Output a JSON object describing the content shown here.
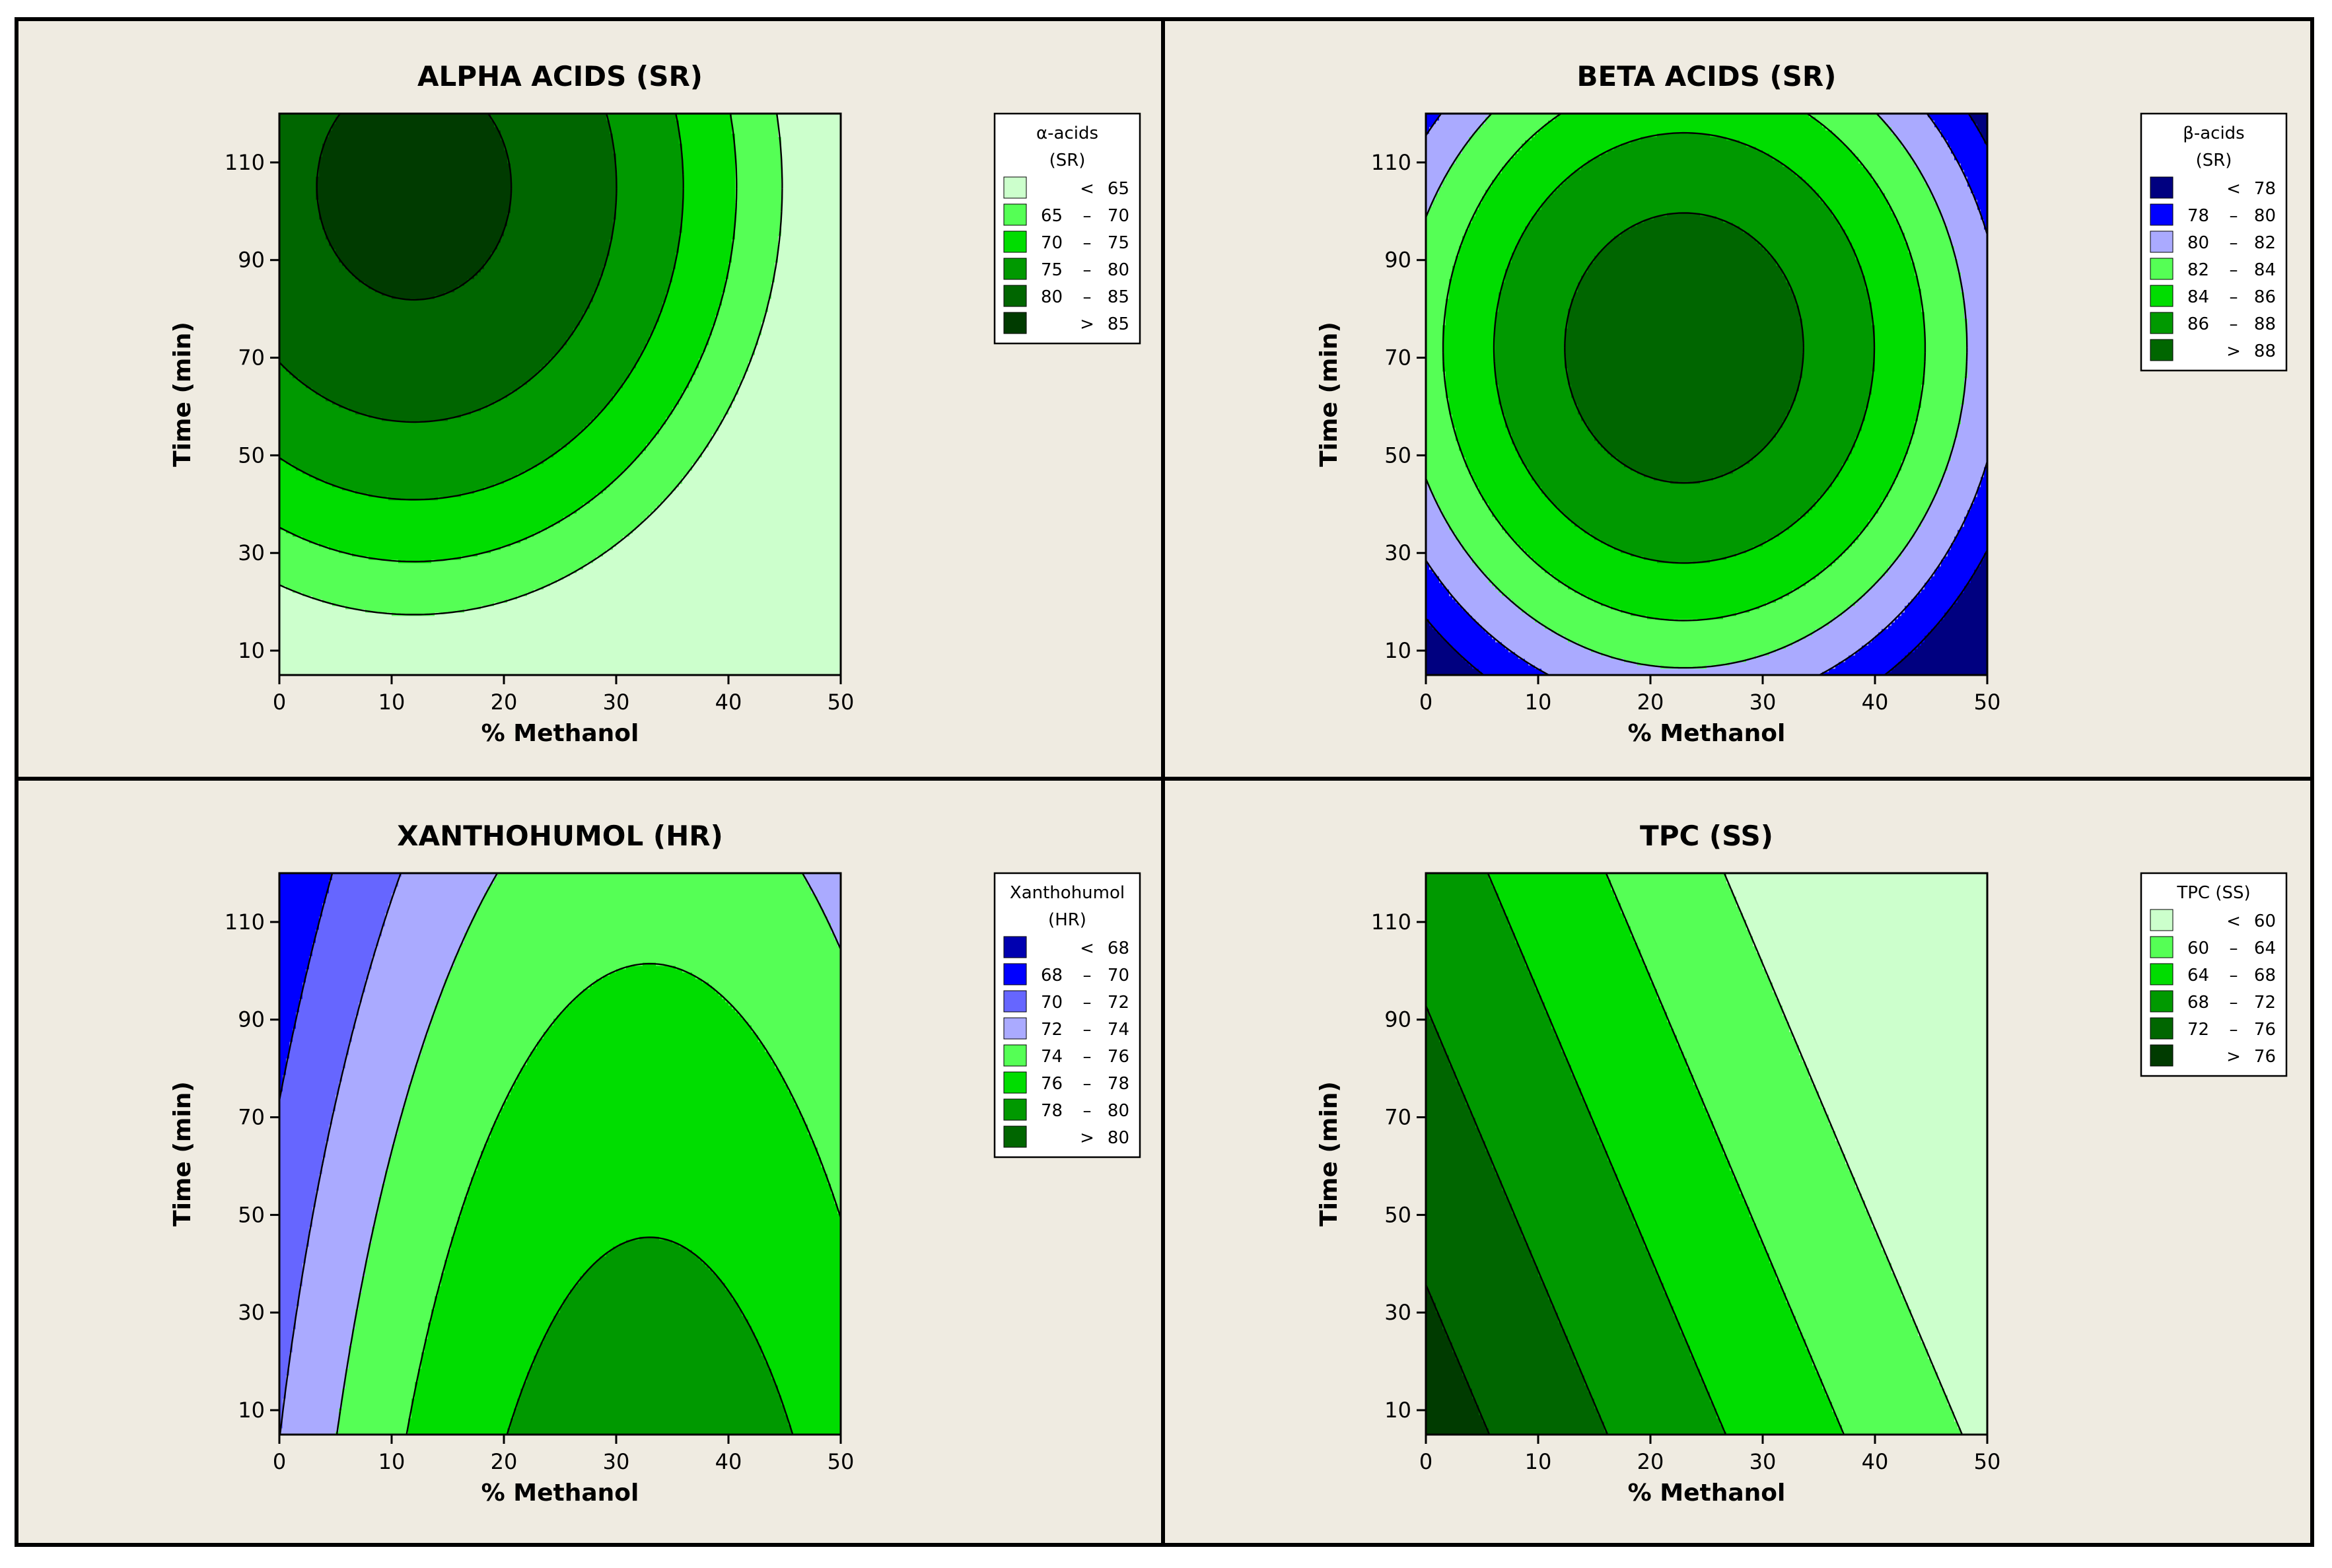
{
  "chart_data": [
    {
      "id": "alpha",
      "type": "contour",
      "title": "ALPHA ACIDS (SR)",
      "xlabel": "% Methanol",
      "ylabel": "Time (min)",
      "xlim": [
        0,
        50
      ],
      "ylim": [
        5,
        120
      ],
      "xticks": [
        "0",
        "10",
        "20",
        "30",
        "40",
        "50"
      ],
      "yticks": [
        "10",
        "30",
        "50",
        "70",
        "90",
        "110"
      ],
      "legend": {
        "title": [
          "α-acids",
          "(SR)"
        ],
        "levels": [
          {
            "lo": "",
            "op": "<",
            "hi": "65",
            "color": "#ccffcc"
          },
          {
            "lo": "65",
            "op": "–",
            "hi": "70",
            "color": "#55ff55"
          },
          {
            "lo": "70",
            "op": "–",
            "hi": "75",
            "color": "#00dd00"
          },
          {
            "lo": "75",
            "op": "–",
            "hi": "80",
            "color": "#009900"
          },
          {
            "lo": "80",
            "op": "–",
            "hi": "85",
            "color": "#006600"
          },
          {
            "lo": "",
            "op": ">",
            "hi": "85",
            "color": "#003b00"
          }
        ]
      },
      "model": {
        "c": 86.5,
        "ax": -0.02,
        "x0": 12,
        "ay": -0.0028,
        "y0": 105,
        "bx": 0,
        "by": 0
      },
      "thresholds": [
        65,
        70,
        75,
        80,
        85
      ]
    },
    {
      "id": "beta",
      "type": "contour",
      "title": "BETA ACIDS (SR)",
      "xlabel": "% Methanol",
      "ylabel": "Time (min)",
      "xlim": [
        0,
        50
      ],
      "ylim": [
        5,
        120
      ],
      "xticks": [
        "0",
        "10",
        "20",
        "30",
        "40",
        "50"
      ],
      "yticks": [
        "10",
        "30",
        "50",
        "70",
        "90",
        "110"
      ],
      "legend": {
        "title": [
          "β-acids",
          "(SR)"
        ],
        "levels": [
          {
            "lo": "",
            "op": "<",
            "hi": "78",
            "color": "#000080"
          },
          {
            "lo": "78",
            "op": "–",
            "hi": "80",
            "color": "#0000ff"
          },
          {
            "lo": "80",
            "op": "–",
            "hi": "82",
            "color": "#aaaaff"
          },
          {
            "lo": "82",
            "op": "–",
            "hi": "84",
            "color": "#55ff55"
          },
          {
            "lo": "84",
            "op": "–",
            "hi": "86",
            "color": "#00dd00"
          },
          {
            "lo": "86",
            "op": "–",
            "hi": "88",
            "color": "#009900"
          },
          {
            "lo": "",
            "op": ">",
            "hi": "88",
            "color": "#006600"
          }
        ]
      },
      "model": {
        "c": 89.3,
        "ax": -0.0115,
        "x0": 23,
        "ay": -0.0017,
        "y0": 72,
        "bx": 0,
        "by": 0
      },
      "thresholds": [
        78,
        80,
        82,
        84,
        86,
        88
      ]
    },
    {
      "id": "xantho",
      "type": "contour",
      "title": "XANTHOHUMOL (HR)",
      "xlabel": "% Methanol",
      "ylabel": "Time (min)",
      "xlim": [
        0,
        50
      ],
      "ylim": [
        5,
        120
      ],
      "xticks": [
        "0",
        "10",
        "20",
        "30",
        "40",
        "50"
      ],
      "yticks": [
        "10",
        "30",
        "50",
        "70",
        "90",
        "110"
      ],
      "legend": {
        "title": [
          "Xanthohumol",
          "(HR)"
        ],
        "levels": [
          {
            "lo": "",
            "op": "<",
            "hi": "68",
            "color": "#0000b0"
          },
          {
            "lo": "68",
            "op": "–",
            "hi": "70",
            "color": "#0000ff"
          },
          {
            "lo": "70",
            "op": "–",
            "hi": "72",
            "color": "#6666ff"
          },
          {
            "lo": "72",
            "op": "–",
            "hi": "74",
            "color": "#aaaaff"
          },
          {
            "lo": "74",
            "op": "–",
            "hi": "76",
            "color": "#55ff55"
          },
          {
            "lo": "76",
            "op": "–",
            "hi": "78",
            "color": "#00dd00"
          },
          {
            "lo": "78",
            "op": "–",
            "hi": "80",
            "color": "#009900"
          },
          {
            "lo": "",
            "op": ">",
            "hi": "80",
            "color": "#006600"
          }
        ]
      },
      "model": {
        "c": 80.6,
        "ax": -0.0065,
        "x0": 33,
        "ay": -0.0001,
        "y0": 120,
        "bx": 0,
        "by": -0.045
      },
      "thresholds": [
        68,
        70,
        72,
        74,
        76,
        78,
        80
      ]
    },
    {
      "id": "tpc",
      "type": "contour",
      "title": "TPC (SS)",
      "xlabel": "% Methanol",
      "ylabel": "Time (min)",
      "xlim": [
        0,
        50
      ],
      "ylim": [
        5,
        120
      ],
      "xticks": [
        "0",
        "10",
        "20",
        "30",
        "40",
        "50"
      ],
      "yticks": [
        "10",
        "30",
        "50",
        "70",
        "90",
        "110"
      ],
      "legend": {
        "title": [
          "TPC (SS)"
        ],
        "levels": [
          {
            "lo": "",
            "op": "<",
            "hi": "60",
            "color": "#ccffcc"
          },
          {
            "lo": "60",
            "op": "–",
            "hi": "64",
            "color": "#55ff55"
          },
          {
            "lo": "64",
            "op": "–",
            "hi": "68",
            "color": "#00dd00"
          },
          {
            "lo": "68",
            "op": "–",
            "hi": "72",
            "color": "#009900"
          },
          {
            "lo": "72",
            "op": "–",
            "hi": "76",
            "color": "#006600"
          },
          {
            "lo": "",
            "op": ">",
            "hi": "76",
            "color": "#003b00"
          }
        ]
      },
      "model": {
        "c": 78.5,
        "ax": 0,
        "x0": 0,
        "ay": 0,
        "y0": 0,
        "bx": -0.38,
        "by": -0.07
      },
      "thresholds": [
        60,
        64,
        68,
        72,
        76
      ]
    }
  ]
}
